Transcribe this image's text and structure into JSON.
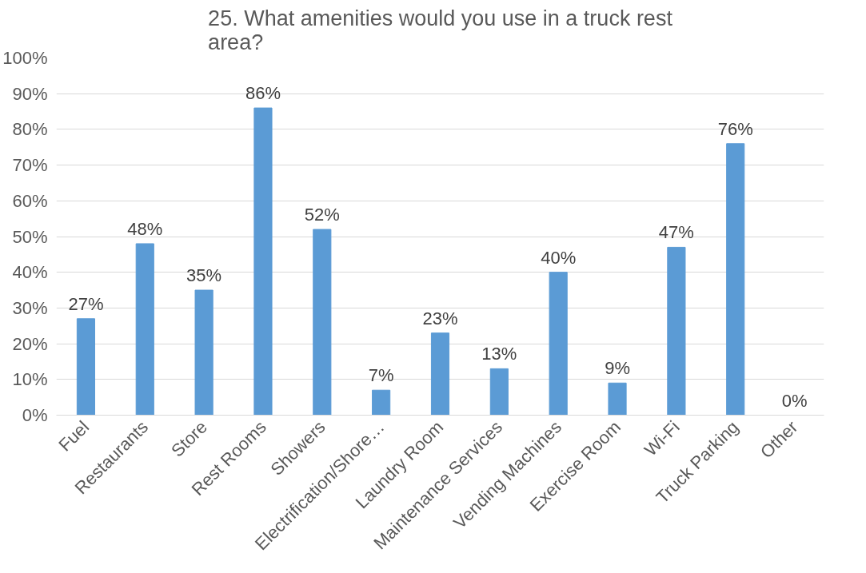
{
  "chart_data": {
    "type": "bar",
    "title": "25. What amenities would you use in a truck rest area?",
    "categories": [
      "Fuel",
      "Restaurants",
      "Store",
      "Rest Rooms",
      "Showers",
      "Electrification/Shore…",
      "Laundry Room",
      "Maintenance Services",
      "Vending Machines",
      "Exercise Room",
      "Wi-Fi",
      "Truck Parking",
      "Other"
    ],
    "values": [
      27,
      48,
      35,
      86,
      52,
      7,
      23,
      13,
      40,
      9,
      47,
      76,
      0
    ],
    "value_labels": [
      "27%",
      "48%",
      "35%",
      "86%",
      "52%",
      "7%",
      "23%",
      "13%",
      "40%",
      "9%",
      "47%",
      "76%",
      "0%"
    ],
    "color": "#5b9bd5",
    "ylim": [
      0,
      100
    ],
    "yticks": [
      {
        "value": 0,
        "label": "0%"
      },
      {
        "value": 10,
        "label": "10%"
      },
      {
        "value": 20,
        "label": "20%"
      },
      {
        "value": 30,
        "label": "30%"
      },
      {
        "value": 40,
        "label": "40%"
      },
      {
        "value": 50,
        "label": "50%"
      },
      {
        "value": 60,
        "label": "60%"
      },
      {
        "value": 70,
        "label": "70%"
      },
      {
        "value": 80,
        "label": "80%"
      },
      {
        "value": 90,
        "label": "90%"
      },
      {
        "value": 100,
        "label": "100%"
      }
    ],
    "grid": "y"
  }
}
